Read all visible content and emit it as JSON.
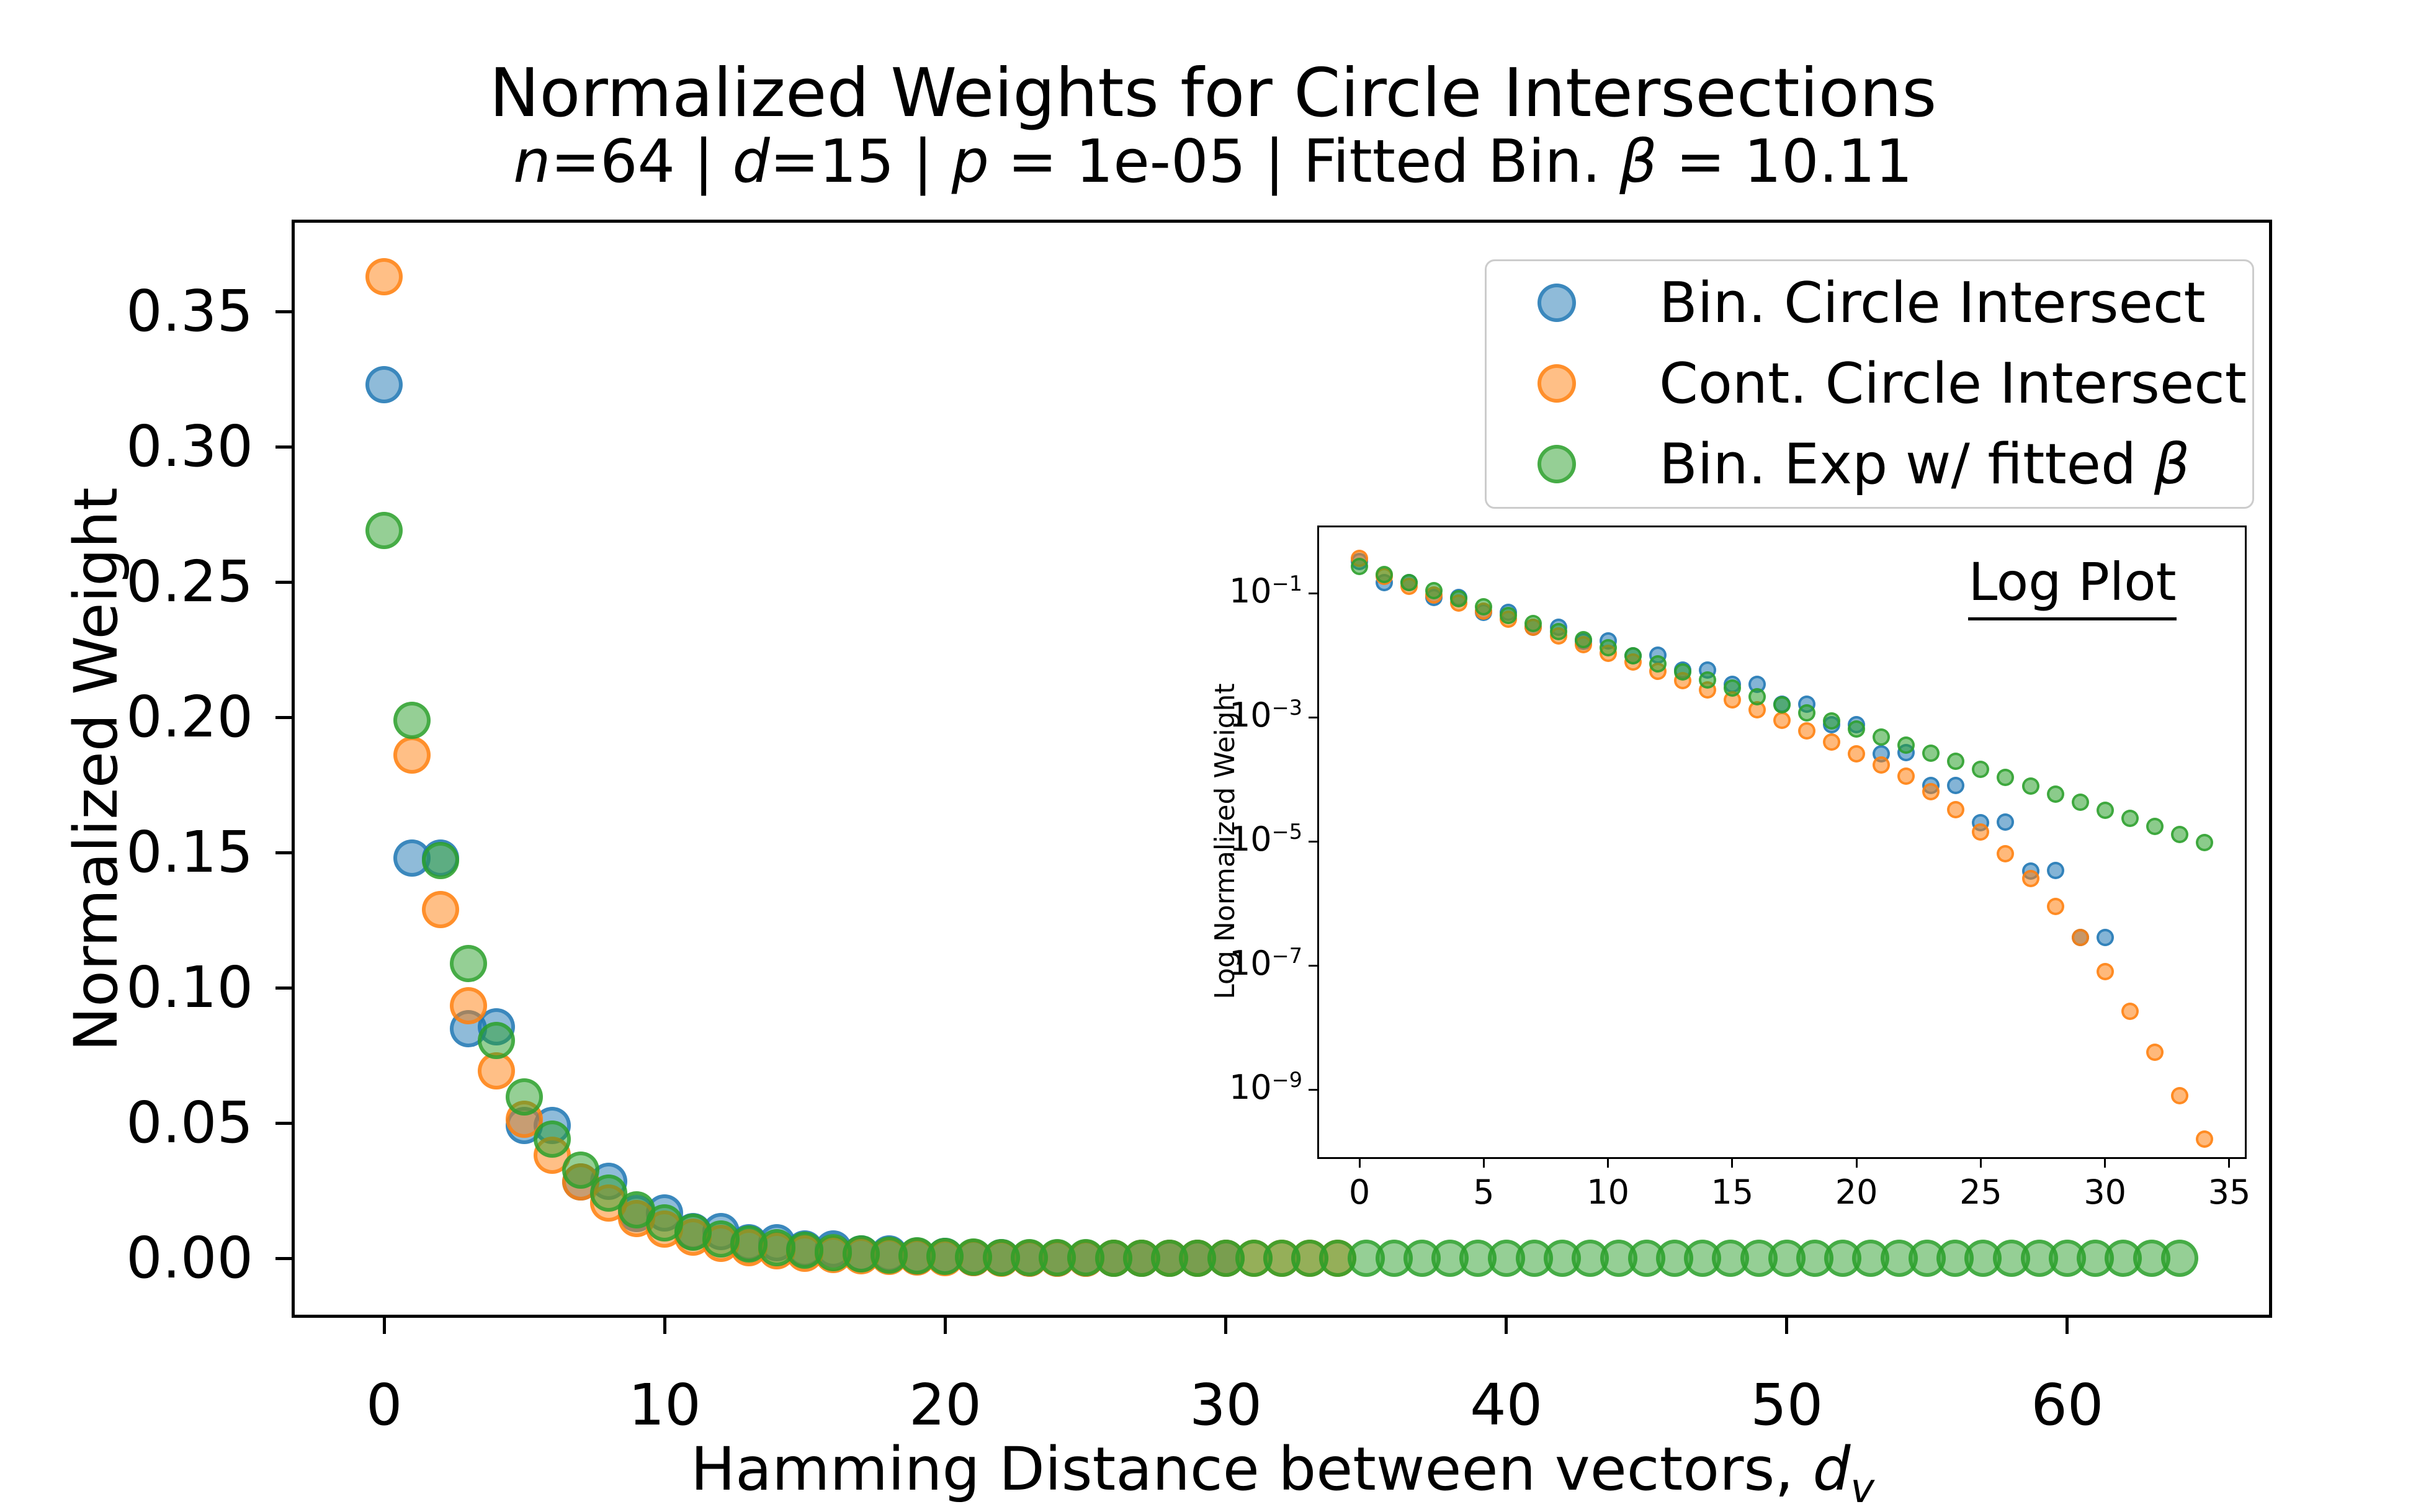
{
  "figure": {
    "bg": "#ffffff"
  },
  "title": {
    "line1": "Normalized Weights for Circle Intersections",
    "line2_segments": [
      {
        "text": "n",
        "italic": true
      },
      {
        "text": "=64 | ",
        "italic": false
      },
      {
        "text": "d",
        "italic": true
      },
      {
        "text": "=15 | ",
        "italic": false
      },
      {
        "text": "p",
        "italic": true
      },
      {
        "text": " = 1e-05 | Fitted Bin. ",
        "italic": false
      },
      {
        "text": "β",
        "italic": true
      },
      {
        "text": " = 10.11",
        "italic": false
      }
    ]
  },
  "main_axes": {
    "ylabel": "Normalized Weight",
    "xlabel_segments": [
      {
        "text": "Hamming Distance between vectors, ",
        "italic": false
      },
      {
        "text": "d",
        "italic": true
      },
      {
        "text": "v",
        "italic": true,
        "sub": true
      }
    ],
    "x_ticks": [
      {
        "v": 0,
        "label": "0"
      },
      {
        "v": 10,
        "label": "10"
      },
      {
        "v": 20,
        "label": "20"
      },
      {
        "v": 30,
        "label": "30"
      },
      {
        "v": 40,
        "label": "40"
      },
      {
        "v": 50,
        "label": "50"
      },
      {
        "v": 60,
        "label": "60"
      }
    ],
    "y_ticks": [
      {
        "v": 0.0,
        "label": "0.00"
      },
      {
        "v": 0.05,
        "label": "0.05"
      },
      {
        "v": 0.1,
        "label": "0.10"
      },
      {
        "v": 0.15,
        "label": "0.15"
      },
      {
        "v": 0.2,
        "label": "0.20"
      },
      {
        "v": 0.25,
        "label": "0.25"
      },
      {
        "v": 0.3,
        "label": "0.30"
      },
      {
        "v": 0.35,
        "label": "0.35"
      }
    ]
  },
  "legend": {
    "entries": [
      {
        "color_key": "blue",
        "segments": [
          {
            "text": "Bin. Circle Intersect",
            "italic": false
          }
        ]
      },
      {
        "color_key": "orange",
        "segments": [
          {
            "text": "Cont. Circle Intersect",
            "italic": false
          }
        ]
      },
      {
        "color_key": "green",
        "segments": [
          {
            "text": "Bin. Exp w/ fitted ",
            "italic": false
          },
          {
            "text": "β",
            "italic": true
          }
        ]
      }
    ]
  },
  "inset": {
    "title": "Log Plot",
    "ylabel": "Log Normalized Weight",
    "x_ticks": [
      {
        "v": 0,
        "label": "0"
      },
      {
        "v": 5,
        "label": "5"
      },
      {
        "v": 10,
        "label": "10"
      },
      {
        "v": 15,
        "label": "15"
      },
      {
        "v": 20,
        "label": "20"
      },
      {
        "v": 25,
        "label": "25"
      },
      {
        "v": 30,
        "label": "30"
      },
      {
        "v": 35,
        "label": "35"
      }
    ],
    "y_tick_exponents": [
      -1,
      -3,
      -5,
      -7,
      -9
    ]
  },
  "colors": {
    "blue": "#1f77b4",
    "orange": "#ff7f0e",
    "green": "#2ca02c",
    "spine": "#000000",
    "legend_border": "#cccccc"
  },
  "chart_data": {
    "type": "scatter",
    "title": "Normalized Weights for Circle Intersections",
    "subtitle": "n=64 | d=15 | p = 1e-05 | Fitted Bin. β = 10.11",
    "main": {
      "xlabel": "Hamming Distance between vectors, d_v",
      "ylabel": "Normalized Weight",
      "xlim": [
        -3.3,
        67.3
      ],
      "ylim": [
        -0.022,
        0.384
      ],
      "grid": false,
      "legend_position": "upper right"
    },
    "inset": {
      "title": "Log Plot",
      "ylabel": "Log Normalized Weight",
      "yscale": "log",
      "xlim": [
        -1.7,
        35.7
      ],
      "ylim_exponents": [
        -10.12,
        0.09
      ],
      "grid": false
    },
    "x_start": 0,
    "x_step": 1,
    "series": [
      {
        "name": "Bin. Circle Intersect",
        "color_key": "blue",
        "values": [
          0.323,
          0.148,
          0.148,
          0.085,
          0.0855,
          0.049,
          0.049,
          0.0282,
          0.0285,
          0.0166,
          0.0168,
          0.0098,
          0.0099,
          0.0058,
          0.0058,
          0.0034,
          0.0034,
          0.00162,
          0.00163,
          0.00076,
          0.00076,
          0.00026,
          0.00027,
          7.9e-05,
          8e-05,
          2e-05,
          2.05e-05,
          3.3e-06,
          3.35e-06,
          2.8e-07,
          2.8e-07
        ]
      },
      {
        "name": "Cont. Circle Intersect",
        "color_key": "orange",
        "values": [
          0.363,
          0.186,
          0.129,
          0.0933,
          0.0692,
          0.0513,
          0.038,
          0.0282,
          0.0204,
          0.0148,
          0.0107,
          0.00776,
          0.0055,
          0.00389,
          0.00275,
          0.00191,
          0.00132,
          0.000891,
          0.000603,
          0.000398,
          0.000257,
          0.00017,
          0.000112,
          6.3e-05,
          3.2e-05,
          1.4e-05,
          6.3e-06,
          2.5e-06,
          8.9e-07,
          2.8e-07,
          7.9e-08,
          1.8e-08,
          4e-09,
          7.9e-10,
          1.6e-10
        ]
      },
      {
        "name": "Bin. Exp w/ fitted β",
        "color_key": "green",
        "values": [
          0.269,
          0.199,
          0.147,
          0.109,
          0.0806,
          0.0596,
          0.0441,
          0.0326,
          0.0241,
          0.0178,
          0.0132,
          0.00975,
          0.00721,
          0.00533,
          0.00394,
          0.00292,
          0.00216,
          0.0016,
          0.00118,
          0.000872,
          0.000645,
          0.000477,
          0.000353,
          0.000261,
          0.000193,
          0.000143,
          0.000106,
          7.81e-05,
          5.78e-05,
          4.27e-05,
          3.16e-05,
          2.34e-05,
          1.73e-05,
          1.28e-05,
          9.45e-06,
          6.99e-06,
          5.17e-06,
          3.82e-06,
          2.83e-06,
          2.09e-06,
          1.55e-06,
          1.14e-06,
          8.46e-07,
          6.26e-07,
          4.63e-07,
          3.42e-07,
          2.53e-07,
          1.87e-07,
          1.39e-07,
          1.02e-07,
          7.58e-08,
          5.61e-08,
          4.15e-08,
          3.07e-08,
          2.27e-08,
          1.68e-08,
          1.24e-08,
          9.18e-09,
          6.79e-09,
          5.02e-09,
          3.71e-09,
          2.75e-09,
          2.03e-09,
          1.5e-09,
          1.11e-09
        ]
      }
    ],
    "inset_series_x_max": {
      "blue": 30,
      "orange": 34,
      "green": 34
    }
  }
}
